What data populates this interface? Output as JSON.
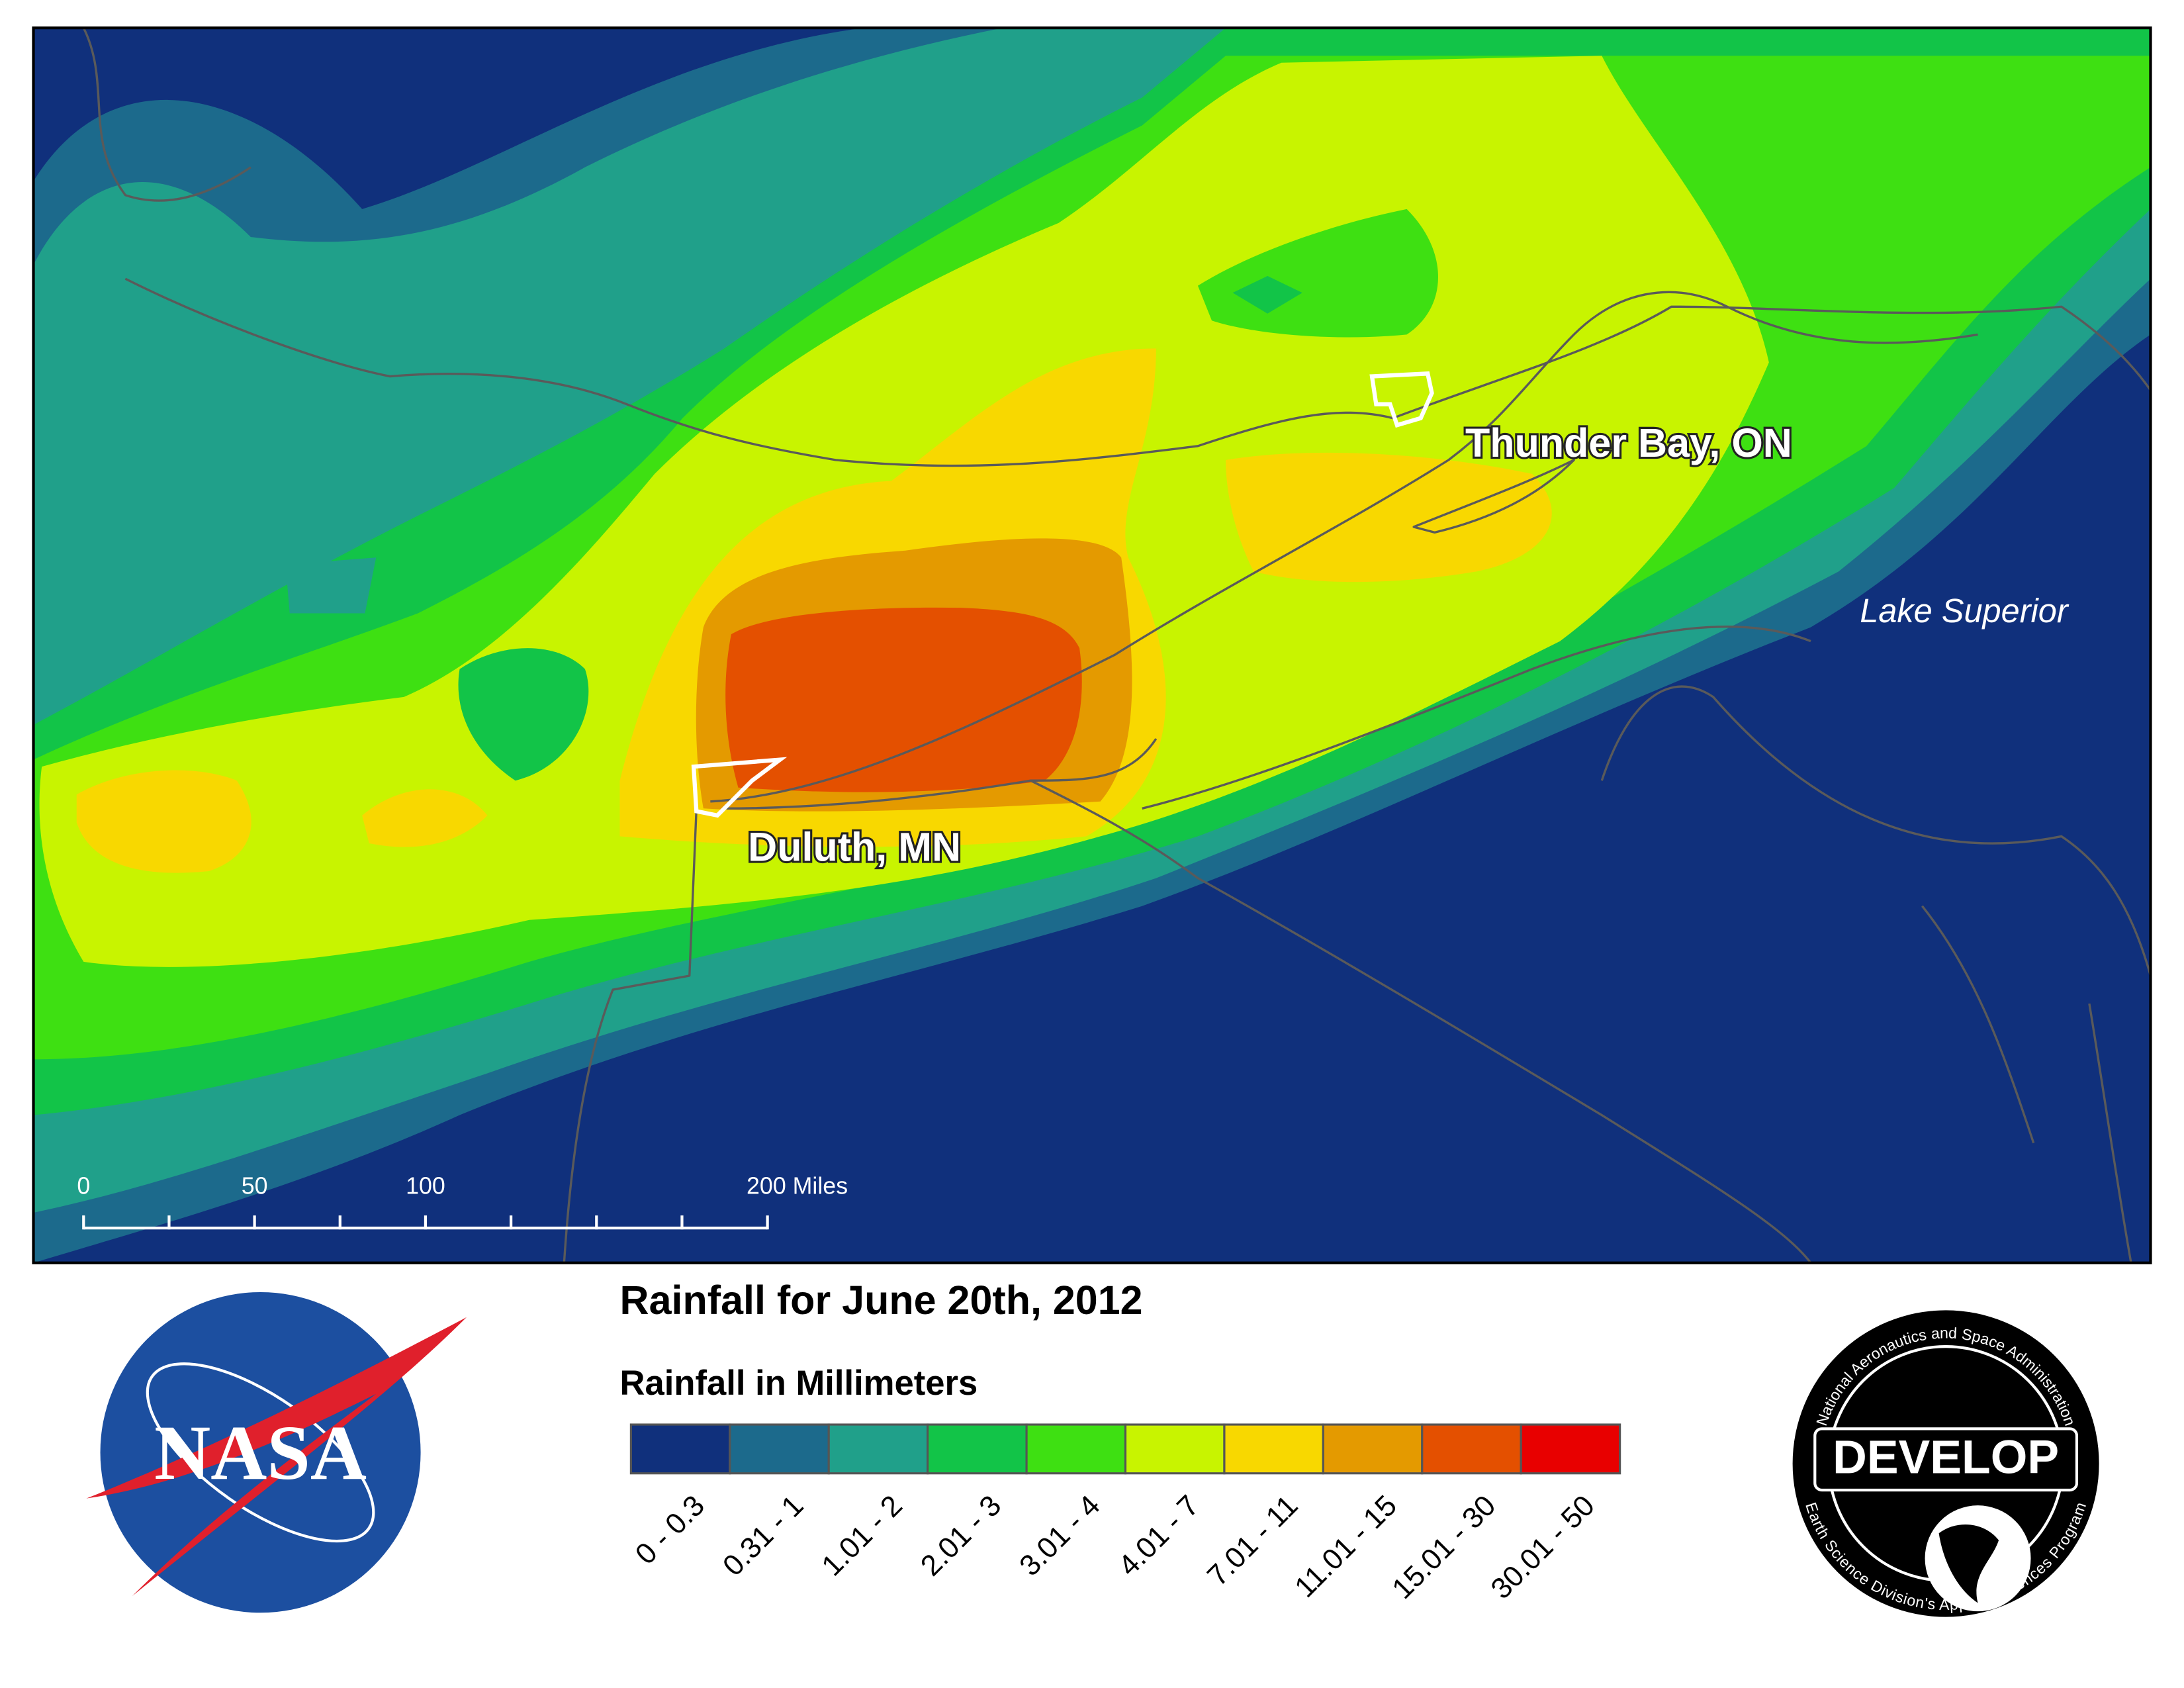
{
  "map": {
    "title": "Rainfall for June 20th, 2012",
    "labels": {
      "thunder_bay": "Thunder Bay, ON",
      "duluth": "Duluth, MN",
      "lake_superior": "Lake Superior"
    },
    "scale_bar": [
      "0",
      "50",
      "100",
      "200 Miles"
    ]
  },
  "legend": {
    "title": "Rainfall in Millimeters",
    "classes": [
      {
        "label": "0 - 0.3",
        "color": "#10307c"
      },
      {
        "label": "0.31 - 1",
        "color": "#1c6a8c"
      },
      {
        "label": "1.01 - 2",
        "color": "#20a08a"
      },
      {
        "label": "2.01 - 3",
        "color": "#12c448"
      },
      {
        "label": "3.01 - 4",
        "color": "#3ee012"
      },
      {
        "label": "4.01 - 7",
        "color": "#c8f400"
      },
      {
        "label": "7.01 - 11",
        "color": "#f8d800"
      },
      {
        "label": "11.01 - 15",
        "color": "#e49a00"
      },
      {
        "label": "15.01 - 30",
        "color": "#e45000"
      },
      {
        "label": "30.01 - 50",
        "color": "#e80000"
      }
    ]
  },
  "logos": {
    "nasa": "NASA",
    "develop": {
      "name": "DEVELOP",
      "top_text": "National Aeronautics and Space Administration",
      "bottom_text": "Earth Science Division's Applied Sciences Program"
    }
  }
}
